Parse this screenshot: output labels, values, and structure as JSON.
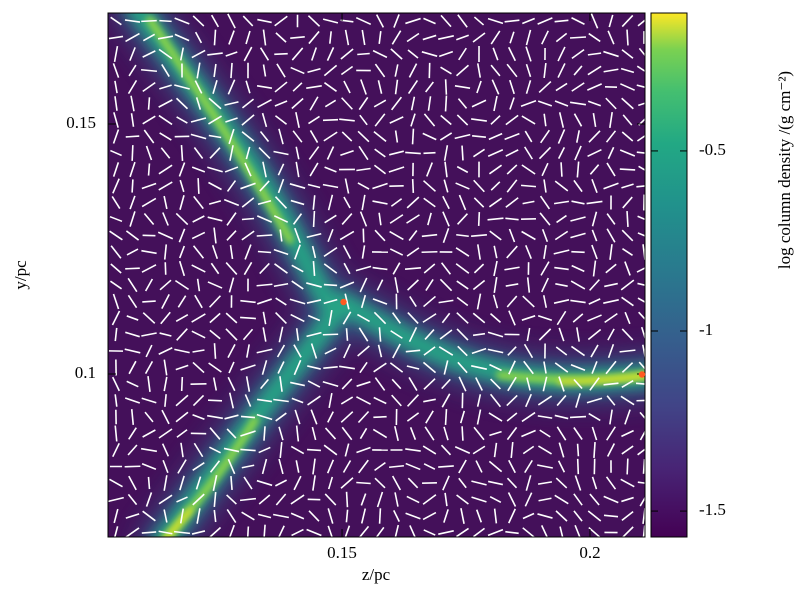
{
  "chart_data": {
    "type": "heatmap",
    "xlabel": "z/pc",
    "ylabel": "y/pc",
    "xlim": [
      0.1028,
      0.2111
    ],
    "xticks": [
      0.15,
      0.2
    ],
    "ylim": [
      0.0674,
      0.1722
    ],
    "yticks": [
      0.1,
      0.15
    ],
    "colorbar": {
      "label": "log column density /(g cm⁻²)",
      "lim": [
        -1.572,
        -0.117
      ],
      "ticks": [
        -1.5,
        -1,
        -0.5
      ],
      "colormap": "viridis"
    },
    "markers": {
      "x": [
        0.1503,
        0.2105
      ],
      "y": [
        0.1144,
        0.0999
      ],
      "color": "#ff5a1f"
    }
  }
}
